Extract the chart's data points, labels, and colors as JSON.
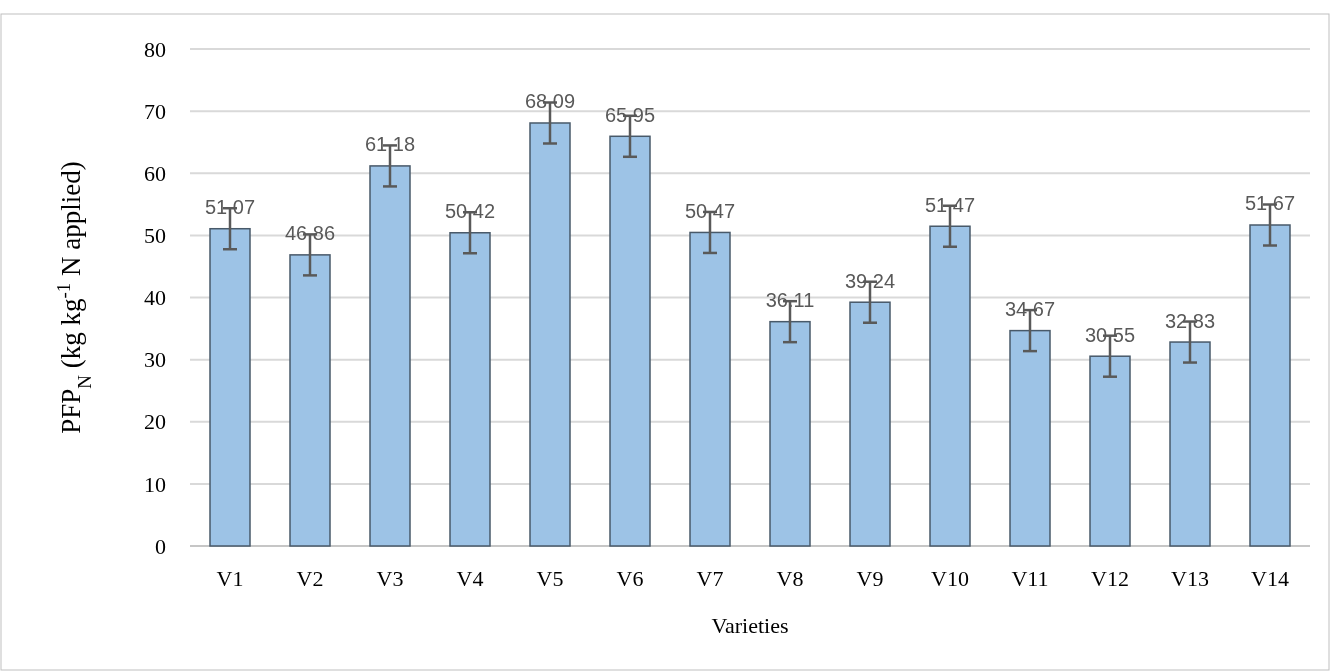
{
  "chart_data": {
    "type": "bar",
    "xlabel": "Varieties",
    "ylabel": "PFP$_{N}$ (kg kg$^{-1}$ N applied)",
    "categories": [
      "V1",
      "V2",
      "V3",
      "V4",
      "V5",
      "V6",
      "V7",
      "V8",
      "V9",
      "V10",
      "V11",
      "V12",
      "V13",
      "V14"
    ],
    "values": [
      51.07,
      46.86,
      61.18,
      50.42,
      68.09,
      65.95,
      50.47,
      36.11,
      39.24,
      51.47,
      34.67,
      30.55,
      32.83,
      51.67
    ],
    "errors": [
      3.3,
      3.3,
      3.3,
      3.3,
      3.3,
      3.3,
      3.3,
      3.3,
      3.3,
      3.3,
      3.3,
      3.3,
      3.3,
      3.3
    ],
    "color": "#9dc3e6",
    "ylim": [
      0,
      80
    ],
    "yticks": [
      0,
      10,
      20,
      30,
      40,
      50,
      60,
      70,
      80
    ],
    "grid": "y",
    "data_labels": true
  }
}
